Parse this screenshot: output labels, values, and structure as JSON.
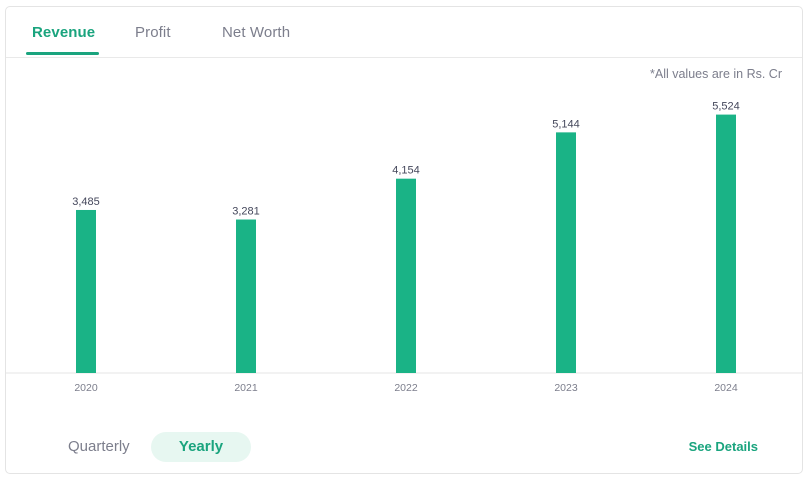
{
  "tabs": [
    {
      "label": "Revenue",
      "active": true
    },
    {
      "label": "Profit",
      "active": false
    },
    {
      "label": "Net Worth",
      "active": false
    }
  ],
  "note": "*All values are in Rs. Cr",
  "period_toggle": {
    "options": [
      "Quarterly",
      "Yearly"
    ],
    "selected": "Yearly"
  },
  "see_details_label": "See Details",
  "colors": {
    "accent": "#1aa47e",
    "bar": "#1ab386",
    "muted_text": "#7c7e8c"
  },
  "chart_data": {
    "type": "bar",
    "categories": [
      "2020",
      "2021",
      "2022",
      "2023",
      "2024"
    ],
    "values": [
      3485,
      3281,
      4154,
      5144,
      5524
    ],
    "value_labels": [
      "3,485",
      "3,281",
      "4,154",
      "5,144",
      "5,524"
    ],
    "title": "",
    "xlabel": "",
    "ylabel": "",
    "ylim": [
      0,
      5900
    ],
    "grid": false,
    "legend": "none"
  }
}
